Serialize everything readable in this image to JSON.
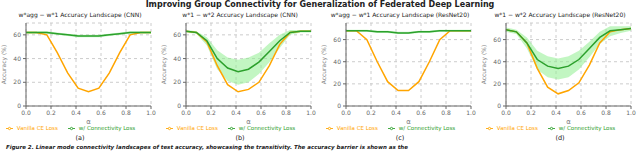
{
  "title": "Improving Group Connectivity for Generalization of Federated Deep Learning",
  "annotations": [
    "Figure 2. Linear mode connectivity landscapes of test accuracy, showcasing the transitivity. The accuracy barrier is shown as the"
  ],
  "chart_data": [
    {
      "type": "line",
      "title": "w*agg − w*1 Accuracy Landscape (CNN)",
      "annotations": [
        "(a)"
      ],
      "x": [
        0.0,
        0.083,
        0.167,
        0.25,
        0.333,
        0.417,
        0.5,
        0.583,
        0.667,
        0.75,
        0.833,
        0.917,
        1.0
      ],
      "xlabel": "α",
      "ylabel": "Accuracy (%)",
      "xlim": [
        0.0,
        1.0
      ],
      "xticks": [
        {
          "value": 0.0,
          "label": "0.0"
        },
        0.2,
        0.4,
        0.6,
        0.8,
        {
          "value": 1.0,
          "label": "1.0"
        }
      ],
      "ylim": [
        0,
        70
      ],
      "yticks": [
        0,
        20,
        40,
        60
      ],
      "grid": true,
      "legend": "bottom",
      "series": [
        {
          "name": "Vanilla CE Loss",
          "color": "#FFA500",
          "values": [
            62,
            62,
            60,
            45,
            28,
            15,
            12,
            15,
            28,
            45,
            60,
            62,
            62
          ]
        },
        {
          "name": "w/ Connectivity Loss",
          "color": "#2CA02C",
          "values": [
            62,
            62,
            62,
            61,
            60,
            59,
            59,
            59,
            60,
            61,
            62,
            62,
            62
          ]
        },
        {
          "type": "band",
          "color": "#90EE90",
          "lower": [
            61,
            61,
            61,
            60,
            59,
            58,
            58,
            58,
            59,
            60,
            61,
            61,
            61
          ],
          "upper": [
            63,
            63,
            63,
            62,
            61,
            60,
            60,
            60,
            61,
            62,
            63,
            63,
            63
          ]
        }
      ]
    },
    {
      "type": "line",
      "title": "w*1 − w*2 Accuracy Landscape (CNN)",
      "annotations": [
        "(b)"
      ],
      "x": [
        0.0,
        0.083,
        0.167,
        0.25,
        0.333,
        0.417,
        0.5,
        0.583,
        0.667,
        0.75,
        0.833,
        0.917,
        1.0
      ],
      "xlabel": "α",
      "ylabel": "Accuracy (%)",
      "xlim": [
        0.0,
        1.0
      ],
      "xticks": [
        {
          "value": 0.0,
          "label": "0.0"
        },
        0.2,
        0.4,
        0.6,
        0.8,
        {
          "value": 1.0,
          "label": "1.0"
        }
      ],
      "ylim": [
        0,
        70
      ],
      "yticks": [
        0,
        20,
        40,
        60
      ],
      "grid": true,
      "legend": "bottom",
      "series": [
        {
          "name": "Vanilla CE Loss",
          "color": "#FFA500",
          "values": [
            63,
            62,
            54,
            34,
            18,
            12,
            14,
            20,
            34,
            52,
            62,
            63,
            63
          ]
        },
        {
          "name": "w/ Connectivity Loss",
          "color": "#2CA02C",
          "values": [
            63,
            62,
            55,
            40,
            32,
            29,
            31,
            37,
            46,
            55,
            62,
            63,
            63
          ]
        },
        {
          "type": "band",
          "color": "#90EE90",
          "lower": [
            62,
            61,
            51,
            31,
            21,
            18,
            20,
            27,
            37,
            49,
            60,
            62,
            62
          ],
          "upper": [
            64,
            63,
            58,
            47,
            41,
            39,
            41,
            45,
            53,
            60,
            64,
            64,
            64
          ]
        }
      ]
    },
    {
      "type": "line",
      "title": "w*agg − w*1 Accuracy Landscape (ResNet20)",
      "annotations": [
        "(c)"
      ],
      "x": [
        0.0,
        0.083,
        0.167,
        0.25,
        0.333,
        0.417,
        0.5,
        0.583,
        0.667,
        0.75,
        0.833,
        0.917,
        1.0
      ],
      "xlabel": "α",
      "ylabel": "Accuracy (%)",
      "xlim": [
        0.0,
        1.0
      ],
      "xticks": [
        {
          "value": 0.0,
          "label": "0.0"
        },
        0.2,
        0.4,
        0.6,
        0.8,
        {
          "value": 1.0,
          "label": "1.0"
        }
      ],
      "ylim": [
        0,
        75
      ],
      "yticks": [
        0,
        20,
        40,
        60
      ],
      "grid": true,
      "legend": "bottom",
      "series": [
        {
          "name": "Vanilla CE Loss",
          "color": "#FFA500",
          "values": [
            68,
            68,
            60,
            40,
            22,
            14,
            14,
            22,
            40,
            60,
            68,
            68,
            68
          ]
        },
        {
          "name": "w/ Connectivity Loss",
          "color": "#2CA02C",
          "values": [
            68,
            68,
            68,
            67,
            67,
            66,
            66,
            67,
            67,
            68,
            68,
            68,
            68
          ]
        },
        {
          "type": "band",
          "color": "#90EE90",
          "lower": [
            67,
            67,
            67,
            66,
            66,
            65,
            65,
            66,
            66,
            67,
            67,
            67,
            67
          ],
          "upper": [
            69,
            69,
            69,
            68,
            68,
            67,
            67,
            68,
            68,
            69,
            69,
            69,
            69
          ]
        }
      ]
    },
    {
      "type": "line",
      "title": "w*1 − w*2 Accuracy Landscape (ResNet20)",
      "annotations": [
        "(d)"
      ],
      "x": [
        0.0,
        0.083,
        0.167,
        0.25,
        0.333,
        0.417,
        0.5,
        0.583,
        0.667,
        0.75,
        0.833,
        0.917,
        1.0
      ],
      "xlabel": "α",
      "ylabel": "Accuracy (%)",
      "xlim": [
        0.0,
        1.0
      ],
      "xticks": [
        {
          "value": 0.0,
          "label": "0.0"
        },
        0.2,
        0.4,
        0.6,
        0.8,
        {
          "value": 1.0,
          "label": "1.0"
        }
      ],
      "ylim": [
        0,
        75
      ],
      "yticks": [
        0,
        20,
        40,
        60
      ],
      "grid": true,
      "legend": "bottom",
      "series": [
        {
          "name": "Vanilla CE Loss",
          "color": "#FFA500",
          "values": [
            69,
            67,
            57,
            34,
            17,
            11,
            14,
            21,
            37,
            57,
            67,
            69,
            70
          ]
        },
        {
          "name": "w/ Connectivity Loss",
          "color": "#2CA02C",
          "values": [
            69,
            67,
            57,
            42,
            36,
            34,
            36,
            42,
            52,
            62,
            68,
            69,
            70
          ]
        },
        {
          "type": "band",
          "color": "#90EE90",
          "lower": [
            67,
            65,
            52,
            33,
            26,
            24,
            26,
            33,
            44,
            56,
            63,
            66,
            68
          ],
          "upper": [
            71,
            69,
            62,
            50,
            45,
            43,
            45,
            50,
            58,
            67,
            72,
            72,
            72
          ]
        }
      ]
    }
  ]
}
